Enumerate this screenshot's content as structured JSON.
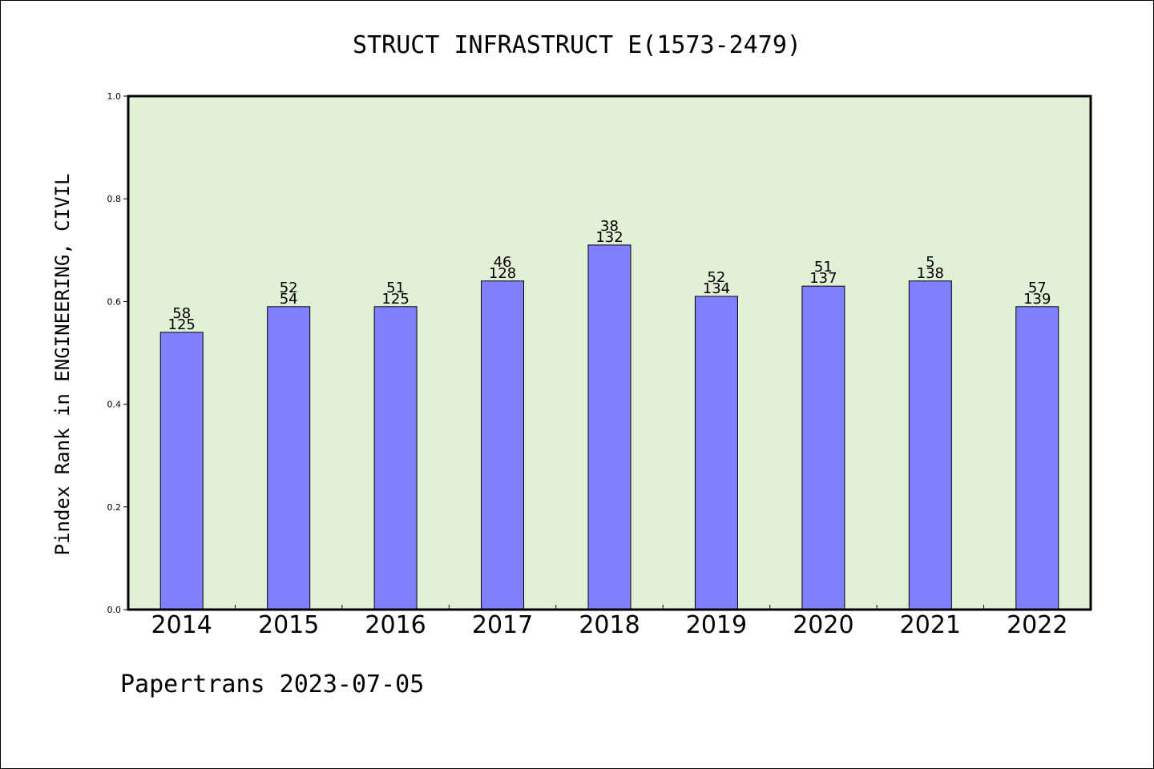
{
  "chart_data": {
    "type": "bar",
    "title": "STRUCT INFRASTRUCT E(1573-2479)",
    "ylabel": "Pindex Rank in ENGINEERING, CIVIL",
    "xlabel": "",
    "categories": [
      "2014",
      "2015",
      "2016",
      "2017",
      "2018",
      "2019",
      "2020",
      "2021",
      "2022"
    ],
    "values": [
      0.54,
      0.59,
      0.59,
      0.64,
      0.71,
      0.61,
      0.63,
      0.64,
      0.59
    ],
    "label_top": [
      "58",
      "52",
      "51",
      "46",
      "38",
      "52",
      "51",
      "5",
      "57"
    ],
    "label_bottom": [
      "125",
      "54",
      "125",
      "128",
      "132",
      "134",
      "137",
      "138",
      "139"
    ],
    "ylim": [
      0,
      1.0
    ],
    "yticks": [
      "0.0",
      "0.2",
      "0.4",
      "0.6",
      "0.8",
      "1.0"
    ],
    "grid": false,
    "colors": {
      "bar": "#8080ff",
      "plot_bg": "#e2f0d6",
      "axis": "#000000"
    }
  },
  "footer": {
    "text": "Papertrans 2023-07-05"
  }
}
